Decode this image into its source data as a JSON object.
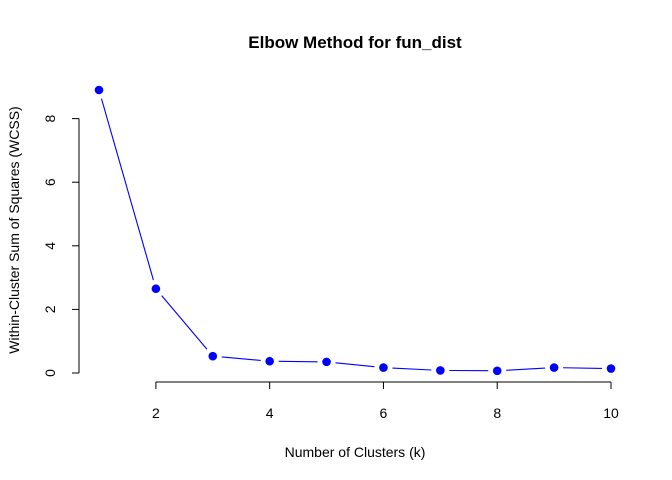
{
  "chart_data": {
    "type": "line",
    "title": "Elbow Method for fun_dist",
    "xlabel": "Number of Clusters (k)",
    "ylabel": "Within-Cluster Sum of Squares (WCSS)",
    "x": [
      1,
      2,
      3,
      4,
      5,
      6,
      7,
      8,
      9,
      10
    ],
    "y": [
      8.9,
      2.65,
      0.53,
      0.37,
      0.35,
      0.17,
      0.08,
      0.07,
      0.17,
      0.14
    ],
    "xticks": [
      2,
      4,
      6,
      8,
      10
    ],
    "xtick_labels": [
      "2",
      "4",
      "6",
      "8",
      "10"
    ],
    "yticks": [
      0,
      2,
      4,
      6,
      8
    ],
    "ytick_labels": [
      "0",
      "2",
      "4",
      "6",
      "8"
    ],
    "xlim": [
      1,
      10
    ],
    "ylim": [
      0,
      8.9
    ],
    "grid": false,
    "line_color": "#0000ff",
    "marker_color": "#0000ff",
    "axis_color": "#000000"
  }
}
